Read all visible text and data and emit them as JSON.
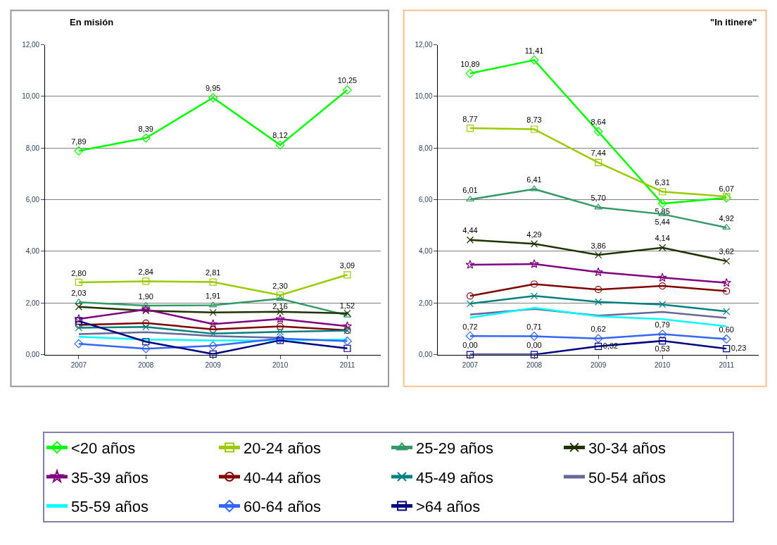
{
  "chart_data": [
    {
      "type": "line",
      "title": "En misión",
      "categories": [
        "2007",
        "2008",
        "2009",
        "2010",
        "2011"
      ],
      "ylim": [
        0,
        12
      ],
      "yticks": [
        {
          "value": 0,
          "label": "0,00"
        },
        {
          "value": 2,
          "label": "2,00"
        },
        {
          "value": 4,
          "label": "4,00"
        },
        {
          "value": 6,
          "label": "6,00"
        },
        {
          "value": 8,
          "label": "8,00"
        },
        {
          "value": 10,
          "label": "10,00"
        },
        {
          "value": 12,
          "label": "12,00"
        }
      ],
      "grid": "y",
      "legend": "bottom",
      "line_style": "solid",
      "series": [
        {
          "name": "<20 años",
          "color": "#00ff00",
          "marker": "diamond",
          "values": [
            7.89,
            8.39,
            9.95,
            8.12,
            10.25
          ],
          "value_labels": [
            "7,89",
            "8,39",
            "9,95",
            "8,12",
            "10,25"
          ]
        },
        {
          "name": "20-24 años",
          "color": "#99cc00",
          "marker": "square",
          "values": [
            2.8,
            2.84,
            2.81,
            2.3,
            3.09
          ],
          "value_labels": [
            "2,80",
            "2,84",
            "2,81",
            "2,30",
            "3,09"
          ]
        },
        {
          "name": "25-29 años",
          "color": "#339966",
          "marker": "triangle",
          "values": [
            2.03,
            1.9,
            1.91,
            2.16,
            1.52
          ],
          "value_labels": [
            "2,03",
            "1,90",
            "1,91",
            "2,16",
            "1,52"
          ]
        },
        {
          "name": "30-34 años",
          "color": "#1f3300",
          "marker": "cross",
          "values": [
            1.85,
            1.7,
            1.63,
            1.66,
            1.6
          ]
        },
        {
          "name": "35-39 años",
          "color": "#800080",
          "marker": "star",
          "values": [
            1.38,
            1.75,
            1.18,
            1.38,
            1.1
          ]
        },
        {
          "name": "40-44 años",
          "color": "#800000",
          "marker": "circle",
          "values": [
            1.15,
            1.22,
            0.98,
            1.09,
            0.94
          ]
        },
        {
          "name": "45-49 años",
          "color": "#008080",
          "marker": "cross",
          "values": [
            1.04,
            1.07,
            0.81,
            0.88,
            0.93
          ]
        },
        {
          "name": "50-54 años",
          "color": "#666699",
          "marker": "none",
          "values": [
            0.79,
            0.87,
            0.72,
            0.65,
            null
          ]
        },
        {
          "name": "55-59 años",
          "color": "#00ffff",
          "marker": "none",
          "values": [
            0.69,
            0.58,
            0.55,
            0.55,
            0.58
          ]
        },
        {
          "name": "60-64 años",
          "color": "#3366ff",
          "marker": "diamond",
          "values": [
            0.42,
            0.23,
            0.34,
            0.62,
            0.52
          ]
        },
        {
          "name": ">64 años",
          "color": "#000080",
          "marker": "square",
          "values": [
            1.3,
            0.5,
            0.02,
            0.55,
            0.24
          ]
        }
      ]
    },
    {
      "type": "line",
      "title": "\"In itinere\"",
      "categories": [
        "2007",
        "2008",
        "2009",
        "2010",
        "2011"
      ],
      "ylim": [
        0,
        12
      ],
      "yticks": [
        {
          "value": 0,
          "label": "0,00"
        },
        {
          "value": 2,
          "label": "2,00"
        },
        {
          "value": 4,
          "label": "4,00"
        },
        {
          "value": 6,
          "label": "6,00"
        },
        {
          "value": 8,
          "label": "8,00"
        },
        {
          "value": 10,
          "label": "10,00"
        },
        {
          "value": 12,
          "label": "12,00"
        }
      ],
      "grid": "y",
      "legend": "bottom",
      "line_style": "solid",
      "series": [
        {
          "name": "<20 años",
          "color": "#00ff00",
          "marker": "diamond",
          "values": [
            10.89,
            11.41,
            8.64,
            5.85,
            6.07
          ],
          "value_labels": [
            "10,89",
            "11,41",
            "8,64",
            "5,85",
            "6,07"
          ]
        },
        {
          "name": "20-24 años",
          "color": "#99cc00",
          "marker": "square",
          "values": [
            8.77,
            8.73,
            7.44,
            6.31,
            6.12
          ],
          "value_labels": [
            "8,77",
            "8,73",
            "7,44",
            "6,31",
            null
          ]
        },
        {
          "name": "25-29 años",
          "color": "#339966",
          "marker": "triangle",
          "values": [
            6.01,
            6.41,
            5.7,
            5.44,
            4.92
          ],
          "value_labels": [
            "6,01",
            "6,41",
            "5,70",
            "5,44",
            "4,92"
          ]
        },
        {
          "name": "30-34 años",
          "color": "#1f3300",
          "marker": "cross",
          "values": [
            4.44,
            4.29,
            3.86,
            4.14,
            3.62
          ],
          "value_labels": [
            "4,44",
            "4,29",
            "3,86",
            "4,14",
            "3,62"
          ]
        },
        {
          "name": "35-39 años",
          "color": "#800080",
          "marker": "star",
          "values": [
            3.48,
            3.51,
            3.19,
            2.98,
            2.78
          ]
        },
        {
          "name": "40-44 años",
          "color": "#800000",
          "marker": "circle",
          "values": [
            2.27,
            2.73,
            2.52,
            2.66,
            2.46
          ]
        },
        {
          "name": "45-49 años",
          "color": "#008080",
          "marker": "cross",
          "values": [
            1.97,
            2.27,
            2.04,
            1.94,
            1.67
          ]
        },
        {
          "name": "50-54 años",
          "color": "#666699",
          "marker": "none",
          "values": [
            1.55,
            1.77,
            1.51,
            1.65,
            1.42
          ]
        },
        {
          "name": "55-59 años",
          "color": "#00ffff",
          "marker": "none",
          "values": [
            1.43,
            1.81,
            1.48,
            1.37,
            1.1
          ]
        },
        {
          "name": "60-64 años",
          "color": "#3366ff",
          "marker": "diamond",
          "values": [
            0.72,
            0.71,
            0.62,
            0.79,
            0.6
          ],
          "value_labels": [
            "0,72",
            "0,71",
            "0,62",
            "0,79",
            "0,60"
          ]
        },
        {
          "name": ">64 años",
          "color": "#000080",
          "marker": "square",
          "values": [
            0.0,
            0.0,
            0.32,
            0.53,
            0.23
          ],
          "value_labels": [
            "0,00",
            "0,00",
            "0,32",
            "0,53",
            "0,23"
          ]
        }
      ]
    }
  ]
}
